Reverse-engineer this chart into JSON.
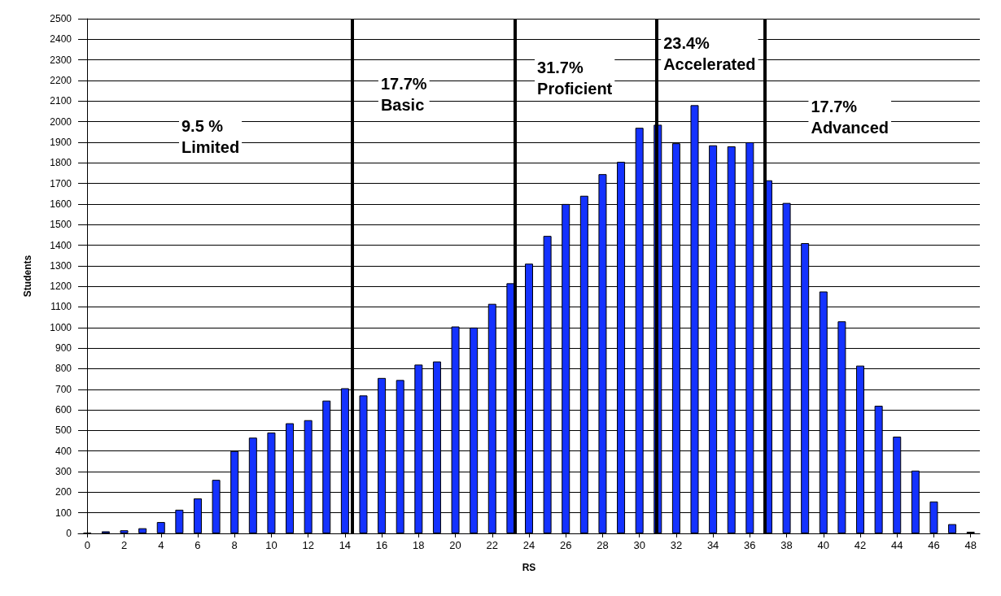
{
  "chart_data": {
    "type": "bar",
    "xlabel": "RS",
    "ylabel": "Students",
    "x": [
      0,
      1,
      2,
      3,
      4,
      5,
      6,
      7,
      8,
      9,
      10,
      11,
      12,
      13,
      14,
      15,
      16,
      17,
      18,
      19,
      20,
      21,
      22,
      23,
      24,
      25,
      26,
      27,
      28,
      29,
      30,
      31,
      32,
      33,
      34,
      35,
      36,
      37,
      38,
      39,
      40,
      41,
      42,
      43,
      44,
      45,
      46,
      47,
      48
    ],
    "values": [
      3,
      10,
      15,
      25,
      55,
      115,
      170,
      260,
      400,
      465,
      490,
      535,
      550,
      645,
      705,
      670,
      755,
      745,
      820,
      835,
      1005,
      1000,
      1115,
      1215,
      1310,
      1445,
      1600,
      1640,
      1745,
      1805,
      1970,
      1985,
      1895,
      2080,
      1885,
      1880,
      1900,
      1715,
      1605,
      1410,
      1175,
      1030,
      815,
      620,
      470,
      305,
      155,
      45,
      8
    ],
    "color": "#1432ff",
    "xlim": [
      -0.5,
      48.5
    ],
    "xticks": [
      0,
      2,
      4,
      6,
      8,
      10,
      12,
      14,
      16,
      18,
      20,
      22,
      24,
      26,
      28,
      30,
      32,
      34,
      36,
      38,
      40,
      42,
      44,
      46,
      48
    ],
    "ylim": [
      0,
      2500
    ],
    "yticks": [
      0,
      100,
      200,
      300,
      400,
      500,
      600,
      700,
      800,
      900,
      1000,
      1100,
      1200,
      1300,
      1400,
      1500,
      1600,
      1700,
      1800,
      1900,
      2000,
      2100,
      2200,
      2300,
      2400,
      2500
    ],
    "grid": "y",
    "ref_lines": [
      {
        "axis": "x",
        "value": 14.4,
        "color": "#000000"
      },
      {
        "axis": "x",
        "value": 23.25,
        "color": "#000000"
      },
      {
        "axis": "x",
        "value": 30.95,
        "color": "#000000"
      },
      {
        "axis": "x",
        "value": 36.8,
        "color": "#000000"
      }
    ],
    "annotations": [
      "9.5 %\nLimited",
      "17.7%\nBasic",
      "31.7%\nProficient",
      "23.4%\nAccelerated",
      "17.7%\nAdvanced"
    ]
  }
}
